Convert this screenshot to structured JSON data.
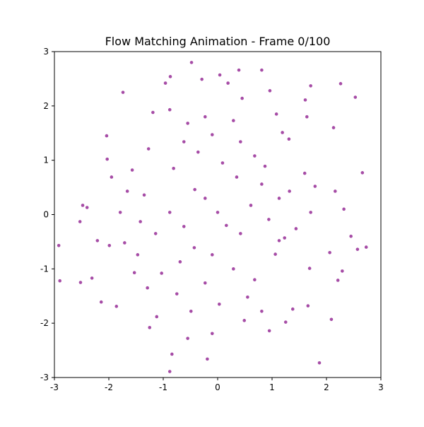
{
  "chart_data": {
    "type": "scatter",
    "title": "Flow Matching Animation - Frame 0/100",
    "color": "purple",
    "xlim": [
      -3,
      3
    ],
    "ylim": [
      -3,
      3
    ],
    "xticks": [
      -3,
      -2,
      -1,
      0,
      1,
      2,
      3
    ],
    "yticks": [
      -3,
      -2,
      -1,
      0,
      1,
      2,
      3
    ],
    "series": [
      {
        "x": [
          -0.48,
          0.81,
          0.39,
          0.04,
          -0.87,
          -0.29,
          0.19,
          2.26,
          -0.96,
          2.53,
          -1.74,
          1.71,
          0.96,
          1.61,
          0.45,
          2.13,
          -2.04,
          2.66,
          2.73,
          2.57,
          -2.92,
          -2.9,
          -2.52,
          -2.31,
          -2.14,
          -1.86,
          -0.88,
          -0.84,
          -0.19,
          1.87,
          2.09,
          2.21,
          2.29,
          2.06,
          2.45,
          2.32,
          2.16,
          -2.48,
          -2.53,
          -2.4,
          -2.21,
          -1.99,
          -2.03,
          -1.95,
          -1.19,
          -0.88,
          -0.55,
          1.19,
          1.31,
          1.64,
          1.08,
          1.6,
          1.79,
          1.71,
          1.44,
          1.23,
          1.06,
          1.69,
          1.38,
          1.66,
          1.25,
          0.95,
          0.49,
          -0.1,
          -0.55,
          -1.12,
          -1.25,
          -0.75,
          -1.29,
          -1.03,
          -1.53,
          -1.71,
          -1.42,
          -1.35,
          -1.57,
          -1.27,
          -0.81,
          -0.42,
          -0.23,
          0.0,
          0.16,
          0.42,
          0.61,
          0.81,
          0.35,
          0.09,
          -0.36,
          -0.62,
          -0.43,
          -0.1,
          0.29,
          0.68,
          -0.23,
          -0.69,
          -0.88,
          -1.14,
          0.94,
          1.13,
          0.68,
          0.42,
          -0.1,
          -0.62,
          0.29,
          -0.23,
          0.87,
          1.32,
          1.13,
          0.55,
          0.03,
          -0.49,
          0.81,
          -1.66,
          -1.79,
          -1.47
        ],
        "y": [
          2.8,
          2.66,
          2.66,
          2.57,
          2.54,
          2.49,
          2.42,
          2.41,
          2.42,
          2.16,
          2.25,
          2.37,
          2.28,
          2.11,
          2.14,
          1.6,
          1.45,
          0.77,
          -0.6,
          -0.64,
          -0.57,
          -1.22,
          -1.25,
          -1.17,
          -1.61,
          -1.69,
          -2.89,
          -2.57,
          -2.66,
          -2.73,
          -1.93,
          -1.21,
          -1.04,
          -0.7,
          -0.4,
          0.1,
          0.43,
          0.17,
          -0.13,
          0.13,
          -0.48,
          -0.57,
          1.02,
          0.69,
          1.88,
          1.93,
          1.68,
          1.51,
          1.39,
          1.8,
          1.85,
          0.76,
          0.52,
          0.04,
          -0.26,
          -0.43,
          -0.73,
          -0.99,
          -1.74,
          -1.68,
          -1.98,
          -2.14,
          -1.95,
          -2.19,
          -2.28,
          -1.88,
          -2.08,
          -1.46,
          -1.35,
          -1.08,
          -1.07,
          -0.52,
          -0.13,
          0.36,
          0.82,
          1.21,
          0.85,
          0.46,
          0.3,
          0.04,
          -0.2,
          -0.35,
          0.17,
          0.56,
          0.69,
          0.95,
          1.15,
          -0.22,
          -0.61,
          -0.74,
          -1.0,
          -1.2,
          -1.26,
          -0.87,
          0.04,
          -0.35,
          -0.09,
          0.3,
          1.08,
          1.34,
          1.47,
          1.34,
          1.73,
          1.8,
          0.89,
          0.43,
          -0.48,
          -1.52,
          -1.65,
          -1.78,
          -1.78,
          0.43,
          0.04,
          -0.74
        ]
      }
    ]
  }
}
